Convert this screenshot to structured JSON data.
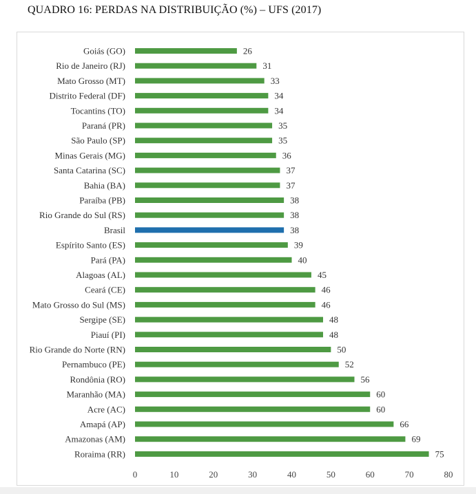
{
  "title": "QUADRO 16: PERDAS NA DISTRIBUIÇÃO (%) – UFS (2017)",
  "colors": {
    "bar": "#4e9a43",
    "highlight": "#1f6fad",
    "grid": "#d9d9d9"
  },
  "chart_data": {
    "type": "bar",
    "orientation": "horizontal",
    "title": "",
    "xlabel": "",
    "ylabel": "",
    "xlim": [
      0,
      80
    ],
    "xticks": [
      "0",
      "10",
      "20",
      "30",
      "40",
      "50",
      "60",
      "70",
      "80"
    ],
    "grid": false,
    "legend": "none",
    "highlight": "Brasil",
    "categories": [
      "Goiás (GO)",
      "Rio de Janeiro (RJ)",
      "Mato Grosso (MT)",
      "Distrito Federal (DF)",
      "Tocantins (TO)",
      "Paraná (PR)",
      "São Paulo (SP)",
      "Minas Gerais (MG)",
      "Santa Catarina (SC)",
      "Bahia (BA)",
      "Paraíba (PB)",
      "Rio Grande do Sul (RS)",
      "Brasil",
      "Espírito Santo (ES)",
      "Pará (PA)",
      "Alagoas (AL)",
      "Ceará (CE)",
      "Mato Grosso do Sul (MS)",
      "Sergipe (SE)",
      "Piauí (PI)",
      "Rio Grande do Norte (RN)",
      "Pernambuco (PE)",
      "Rondônia (RO)",
      "Maranhão (MA)",
      "Acre (AC)",
      "Amapá (AP)",
      "Amazonas (AM)",
      "Roraima (RR)"
    ],
    "values": [
      26,
      31,
      33,
      34,
      34,
      35,
      35,
      36,
      37,
      37,
      38,
      38,
      38,
      39,
      40,
      45,
      46,
      46,
      48,
      48,
      50,
      52,
      56,
      60,
      60,
      66,
      69,
      75
    ]
  }
}
